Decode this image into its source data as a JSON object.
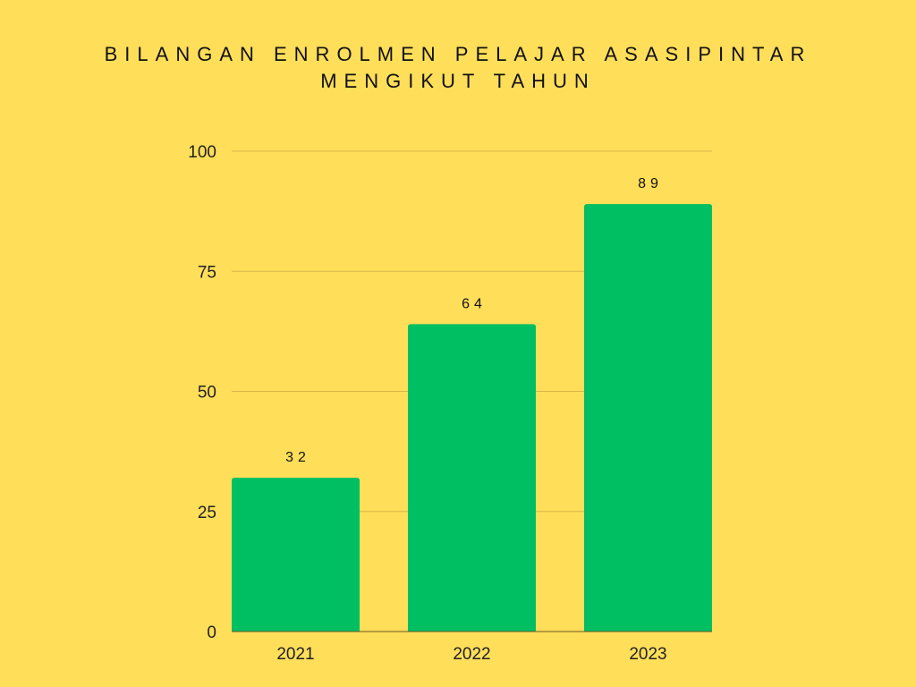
{
  "chart_data": {
    "type": "bar",
    "title_lines": [
      "BILANGAN ENROLMEN PELAJAR ASASIPINTAR",
      "MENGIKUT TAHUN"
    ],
    "categories": [
      "2021",
      "2022",
      "2023"
    ],
    "values": [
      32,
      64,
      89
    ],
    "data_labels": [
      "32",
      "64",
      "89"
    ],
    "ylim": [
      0,
      100
    ],
    "yticks": [
      0,
      25,
      50,
      75,
      100
    ],
    "xlabel": "",
    "ylabel": "",
    "grid": true,
    "legend": "none",
    "colors": {
      "background": "#FFDE59",
      "bar": "#00BF63",
      "grid": "#D8B64A",
      "axis": "#6B5A1E"
    }
  }
}
